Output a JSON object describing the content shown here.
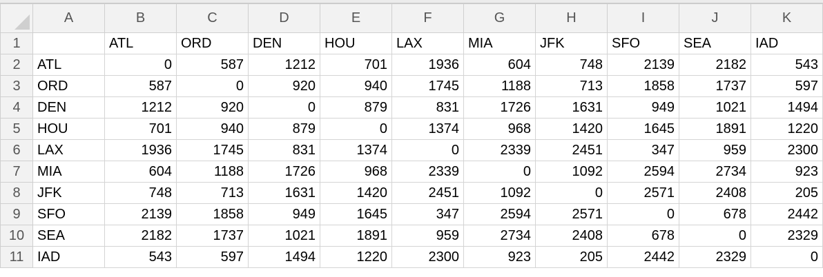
{
  "columns": [
    "A",
    "B",
    "C",
    "D",
    "E",
    "F",
    "G",
    "H",
    "I",
    "J",
    "K"
  ],
  "rows": [
    {
      "num": "1",
      "cells": [
        "",
        "ATL",
        "ORD",
        "DEN",
        "HOU",
        "LAX",
        "MIA",
        "JFK",
        "SFO",
        "SEA",
        "IAD"
      ]
    },
    {
      "num": "2",
      "cells": [
        "ATL",
        "0",
        "587",
        "1212",
        "701",
        "1936",
        "604",
        "748",
        "2139",
        "2182",
        "543"
      ]
    },
    {
      "num": "3",
      "cells": [
        "ORD",
        "587",
        "0",
        "920",
        "940",
        "1745",
        "1188",
        "713",
        "1858",
        "1737",
        "597"
      ]
    },
    {
      "num": "4",
      "cells": [
        "DEN",
        "1212",
        "920",
        "0",
        "879",
        "831",
        "1726",
        "1631",
        "949",
        "1021",
        "1494"
      ]
    },
    {
      "num": "5",
      "cells": [
        "HOU",
        "701",
        "940",
        "879",
        "0",
        "1374",
        "968",
        "1420",
        "1645",
        "1891",
        "1220"
      ]
    },
    {
      "num": "6",
      "cells": [
        "LAX",
        "1936",
        "1745",
        "831",
        "1374",
        "0",
        "2339",
        "2451",
        "347",
        "959",
        "2300"
      ]
    },
    {
      "num": "7",
      "cells": [
        "MIA",
        "604",
        "1188",
        "1726",
        "968",
        "2339",
        "0",
        "1092",
        "2594",
        "2734",
        "923"
      ]
    },
    {
      "num": "8",
      "cells": [
        "JFK",
        "748",
        "713",
        "1631",
        "1420",
        "2451",
        "1092",
        "0",
        "2571",
        "2408",
        "205"
      ]
    },
    {
      "num": "9",
      "cells": [
        "SFO",
        "2139",
        "1858",
        "949",
        "1645",
        "347",
        "2594",
        "2571",
        "0",
        "678",
        "2442"
      ]
    },
    {
      "num": "10",
      "cells": [
        "SEA",
        "2182",
        "1737",
        "1021",
        "1891",
        "959",
        "2734",
        "2408",
        "678",
        "0",
        "2329"
      ]
    },
    {
      "num": "11",
      "cells": [
        "IAD",
        "543",
        "597",
        "1494",
        "1220",
        "2300",
        "923",
        "205",
        "2442",
        "2329",
        "0"
      ]
    }
  ]
}
